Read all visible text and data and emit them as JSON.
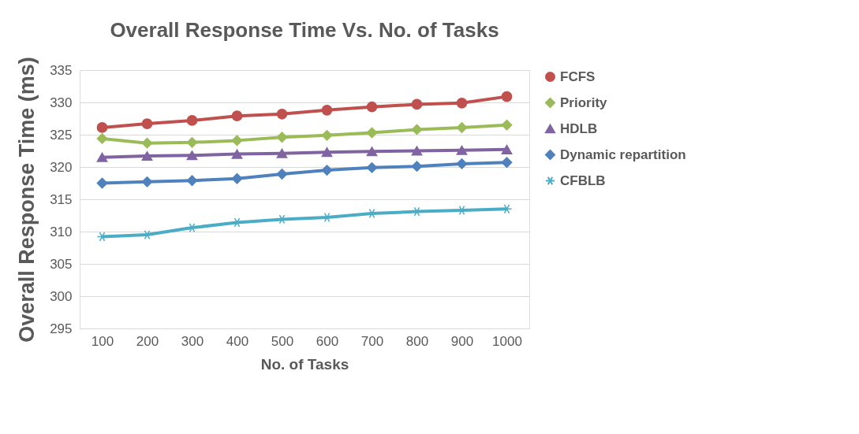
{
  "chart_data": {
    "type": "line",
    "title": "Overall Response Time Vs. No. of Tasks",
    "xlabel": "No. of Tasks",
    "ylabel": "Overall Response Time (ms)",
    "categories": [
      "100",
      "200",
      "300",
      "400",
      "500",
      "600",
      "700",
      "800",
      "900",
      "1000"
    ],
    "series": [
      {
        "name": "FCFS",
        "color": "#c0504d",
        "marker": "circle",
        "values": [
          326.1,
          326.7,
          327.2,
          327.9,
          328.2,
          328.8,
          329.3,
          329.7,
          329.9,
          330.9
        ]
      },
      {
        "name": "Priority",
        "color": "#9bbb59",
        "marker": "diamond",
        "values": [
          324.4,
          323.7,
          323.8,
          324.1,
          324.6,
          324.9,
          325.3,
          325.8,
          326.1,
          326.5
        ]
      },
      {
        "name": "HDLB",
        "color": "#8064a2",
        "marker": "triangle",
        "values": [
          321.5,
          321.7,
          321.8,
          322.0,
          322.1,
          322.3,
          322.4,
          322.5,
          322.6,
          322.7
        ]
      },
      {
        "name": "Dynamic repartition",
        "color": "#4f81bd",
        "marker": "diamond",
        "values": [
          317.5,
          317.7,
          317.9,
          318.2,
          318.9,
          319.5,
          319.9,
          320.1,
          320.5,
          320.7
        ]
      },
      {
        "name": "CFBLB",
        "color": "#4bacc6",
        "marker": "cross",
        "values": [
          309.2,
          309.5,
          310.6,
          311.4,
          311.9,
          312.2,
          312.8,
          313.1,
          313.3,
          313.5
        ]
      }
    ],
    "ylim": [
      295,
      335
    ],
    "yticks": [
      295,
      300,
      305,
      310,
      315,
      320,
      325,
      330,
      335
    ],
    "grid": "y",
    "legend": "right",
    "line_style": "solid"
  }
}
